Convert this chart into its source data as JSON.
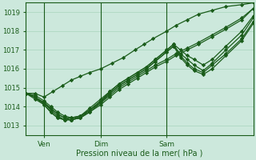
{
  "title": "",
  "xlabel": "Pression niveau de la mer( hPa )",
  "ylabel": "",
  "bg_color": "#cce8dc",
  "grid_color": "#a8d4bc",
  "line_color": "#1a5c1a",
  "marker_color": "#1a5c1a",
  "ylim": [
    1012.5,
    1019.5
  ],
  "xlim": [
    0,
    100
  ],
  "yticks": [
    1013,
    1014,
    1015,
    1016,
    1017,
    1018,
    1019
  ],
  "xtick_labels": [
    "Ven",
    "Dim",
    "Sam"
  ],
  "xtick_positions": [
    8,
    33,
    62
  ],
  "vline_positions": [
    8,
    33,
    62
  ],
  "series": [
    {
      "x": [
        0,
        4,
        8,
        12,
        16,
        20,
        24,
        28,
        33,
        38,
        43,
        48,
        52,
        56,
        62,
        66,
        71,
        76,
        82,
        88,
        95,
        100
      ],
      "y": [
        1014.7,
        1014.7,
        1014.5,
        1014.8,
        1015.1,
        1015.4,
        1015.6,
        1015.8,
        1016.0,
        1016.3,
        1016.6,
        1017.0,
        1017.3,
        1017.6,
        1018.0,
        1018.3,
        1018.6,
        1018.9,
        1019.1,
        1019.3,
        1019.4,
        1019.5
      ]
    },
    {
      "x": [
        0,
        4,
        8,
        11,
        14,
        17,
        20,
        24,
        28,
        33,
        37,
        41,
        45,
        49,
        53,
        57,
        62,
        66,
        71,
        76,
        82,
        88,
        95,
        100
      ],
      "y": [
        1014.7,
        1014.5,
        1014.2,
        1013.9,
        1013.6,
        1013.4,
        1013.3,
        1013.4,
        1013.7,
        1014.1,
        1014.5,
        1014.9,
        1015.2,
        1015.5,
        1015.8,
        1016.1,
        1016.4,
        1016.7,
        1017.0,
        1017.3,
        1017.7,
        1018.1,
        1018.6,
        1019.2
      ]
    },
    {
      "x": [
        0,
        4,
        8,
        11,
        14,
        17,
        20,
        24,
        28,
        33,
        37,
        41,
        45,
        49,
        53,
        57,
        62,
        66,
        71,
        76,
        82,
        88,
        95,
        100
      ],
      "y": [
        1014.7,
        1014.6,
        1014.3,
        1014.0,
        1013.7,
        1013.5,
        1013.4,
        1013.5,
        1013.8,
        1014.2,
        1014.6,
        1015.0,
        1015.3,
        1015.6,
        1015.9,
        1016.2,
        1016.5,
        1016.8,
        1017.1,
        1017.4,
        1017.8,
        1018.2,
        1018.7,
        1019.2
      ]
    },
    {
      "x": [
        0,
        4,
        8,
        11,
        14,
        17,
        20,
        24,
        28,
        33,
        37,
        41,
        45,
        49,
        53,
        57,
        62,
        65,
        68,
        71,
        74,
        78,
        82,
        88,
        95,
        100
      ],
      "y": [
        1014.7,
        1014.5,
        1014.1,
        1013.7,
        1013.4,
        1013.3,
        1013.3,
        1013.4,
        1013.8,
        1014.3,
        1014.8,
        1015.2,
        1015.5,
        1015.8,
        1016.1,
        1016.5,
        1017.0,
        1017.3,
        1017.0,
        1016.7,
        1016.5,
        1016.2,
        1016.5,
        1017.2,
        1018.0,
        1018.8
      ]
    },
    {
      "x": [
        0,
        4,
        8,
        11,
        14,
        17,
        20,
        24,
        28,
        33,
        37,
        41,
        45,
        49,
        53,
        57,
        62,
        65,
        68,
        71,
        74,
        78,
        82,
        88,
        95,
        100
      ],
      "y": [
        1014.7,
        1014.5,
        1014.2,
        1013.8,
        1013.5,
        1013.3,
        1013.3,
        1013.4,
        1013.7,
        1014.2,
        1014.7,
        1015.1,
        1015.4,
        1015.7,
        1016.0,
        1016.4,
        1016.9,
        1017.2,
        1016.8,
        1016.5,
        1016.2,
        1015.9,
        1016.3,
        1017.0,
        1017.8,
        1018.7
      ]
    },
    {
      "x": [
        0,
        4,
        8,
        11,
        14,
        17,
        20,
        24,
        28,
        33,
        37,
        41,
        45,
        49,
        53,
        57,
        62,
        65,
        68,
        71,
        74,
        78,
        82,
        88,
        95,
        100
      ],
      "y": [
        1014.7,
        1014.4,
        1014.1,
        1013.7,
        1013.4,
        1013.3,
        1013.3,
        1013.5,
        1013.9,
        1014.4,
        1014.8,
        1015.2,
        1015.5,
        1015.8,
        1016.1,
        1016.5,
        1017.0,
        1017.3,
        1016.7,
        1016.3,
        1016.0,
        1015.8,
        1016.2,
        1016.8,
        1017.6,
        1018.5
      ]
    },
    {
      "x": [
        0,
        4,
        8,
        11,
        14,
        17,
        20,
        24,
        28,
        33,
        37,
        41,
        45,
        49,
        53,
        57,
        62,
        65,
        68,
        71,
        74,
        78,
        82,
        88,
        95,
        100
      ],
      "y": [
        1014.7,
        1014.5,
        1014.2,
        1013.9,
        1013.6,
        1013.4,
        1013.4,
        1013.5,
        1013.8,
        1014.3,
        1014.7,
        1015.1,
        1015.4,
        1015.7,
        1016.0,
        1016.4,
        1016.9,
        1017.2,
        1016.6,
        1016.2,
        1015.9,
        1015.7,
        1016.0,
        1016.7,
        1017.5,
        1018.4
      ]
    }
  ]
}
